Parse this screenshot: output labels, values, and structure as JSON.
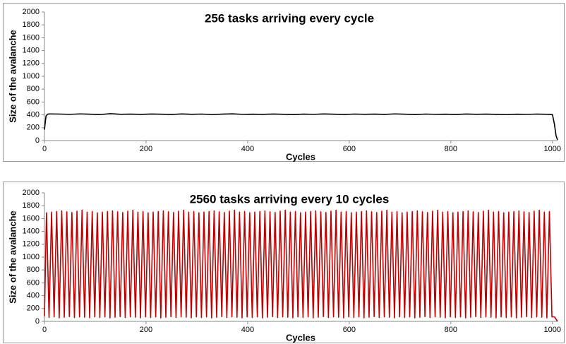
{
  "chart_data": [
    {
      "type": "line",
      "title": "256 tasks arriving every cycle",
      "x_label": "Cycles",
      "y_label": "Size of the avalanche",
      "color": "#000000",
      "xlim": [
        0,
        1010
      ],
      "xticks": [
        0,
        200,
        400,
        600,
        800,
        1000
      ],
      "ylim": [
        0,
        2000
      ],
      "yticks": [
        0,
        200,
        400,
        600,
        800,
        1000,
        1200,
        1400,
        1600,
        1800,
        2000
      ],
      "grid": false,
      "x": [
        0,
        3,
        6,
        10,
        30,
        50,
        70,
        90,
        110,
        130,
        150,
        170,
        190,
        210,
        230,
        250,
        270,
        290,
        310,
        330,
        350,
        370,
        390,
        410,
        430,
        450,
        470,
        490,
        510,
        530,
        550,
        570,
        590,
        610,
        630,
        650,
        670,
        690,
        710,
        730,
        750,
        770,
        790,
        810,
        830,
        850,
        870,
        890,
        910,
        930,
        950,
        970,
        990,
        1000,
        1004,
        1007,
        1010
      ],
      "values": [
        170,
        380,
        410,
        415,
        412,
        408,
        415,
        410,
        405,
        418,
        409,
        411,
        407,
        413,
        410,
        406,
        414,
        409,
        412,
        404,
        411,
        416,
        408,
        410,
        407,
        413,
        409,
        405,
        411,
        408,
        414,
        410,
        406,
        412,
        409,
        411,
        407,
        415,
        410,
        405,
        412,
        408,
        410,
        406,
        413,
        409,
        411,
        407,
        404,
        410,
        408,
        412,
        409,
        405,
        250,
        80,
        10
      ]
    },
    {
      "type": "line",
      "title": "2560 tasks arriving every 10 cycles",
      "x_label": "Cycles",
      "y_label": "Size of the avalanche",
      "color": "#c00000",
      "xlim": [
        0,
        1010
      ],
      "xticks": [
        0,
        200,
        400,
        600,
        800,
        1000
      ],
      "ylim": [
        0,
        2000
      ],
      "yticks": [
        0,
        200,
        400,
        600,
        800,
        1000,
        1200,
        1400,
        1600,
        1800,
        2000
      ],
      "grid": false,
      "x": [
        0,
        4,
        9,
        14,
        19,
        24,
        29,
        34,
        39,
        44,
        49,
        54,
        59,
        64,
        69,
        74,
        79,
        84,
        89,
        94,
        99,
        104,
        109,
        114,
        119,
        124,
        129,
        134,
        139,
        144,
        149,
        154,
        159,
        164,
        169,
        174,
        179,
        184,
        189,
        194,
        199,
        204,
        209,
        214,
        219,
        224,
        229,
        234,
        239,
        244,
        249,
        254,
        259,
        264,
        269,
        274,
        279,
        284,
        289,
        294,
        299,
        304,
        309,
        314,
        319,
        324,
        329,
        334,
        339,
        344,
        349,
        354,
        359,
        364,
        369,
        374,
        379,
        384,
        389,
        394,
        399,
        404,
        409,
        414,
        419,
        424,
        429,
        434,
        439,
        444,
        449,
        454,
        459,
        464,
        469,
        474,
        479,
        484,
        489,
        494,
        499,
        504,
        509,
        514,
        519,
        524,
        529,
        534,
        539,
        544,
        549,
        554,
        559,
        564,
        569,
        574,
        579,
        584,
        589,
        594,
        599,
        604,
        609,
        614,
        619,
        624,
        629,
        634,
        639,
        644,
        649,
        654,
        659,
        664,
        669,
        674,
        679,
        684,
        689,
        694,
        699,
        704,
        709,
        714,
        719,
        724,
        729,
        734,
        739,
        744,
        749,
        754,
        759,
        764,
        769,
        774,
        779,
        784,
        789,
        794,
        799,
        804,
        809,
        814,
        819,
        824,
        829,
        834,
        839,
        844,
        849,
        854,
        859,
        864,
        869,
        874,
        879,
        884,
        889,
        894,
        899,
        904,
        909,
        914,
        919,
        924,
        929,
        934,
        939,
        944,
        949,
        954,
        959,
        964,
        969,
        974,
        979,
        984,
        989,
        994,
        999,
        1004,
        1010
      ],
      "values": [
        80,
        1690,
        60,
        1700,
        70,
        1710,
        55,
        1720,
        65,
        1705,
        75,
        1695,
        60,
        1715,
        70,
        1730,
        65,
        1700,
        55,
        1710,
        70,
        1690,
        60,
        1700,
        70,
        1710,
        55,
        1720,
        65,
        1705,
        75,
        1695,
        60,
        1715,
        70,
        1730,
        65,
        1700,
        55,
        1710,
        70,
        1690,
        60,
        1700,
        70,
        1710,
        55,
        1720,
        65,
        1705,
        75,
        1695,
        60,
        1715,
        70,
        1730,
        65,
        1700,
        55,
        1710,
        70,
        1690,
        60,
        1700,
        70,
        1710,
        55,
        1720,
        65,
        1705,
        75,
        1695,
        60,
        1715,
        70,
        1730,
        65,
        1700,
        55,
        1710,
        70,
        1690,
        60,
        1700,
        70,
        1710,
        55,
        1720,
        65,
        1705,
        75,
        1695,
        60,
        1715,
        70,
        1730,
        65,
        1700,
        55,
        1710,
        70,
        1690,
        60,
        1700,
        70,
        1710,
        55,
        1720,
        65,
        1705,
        75,
        1695,
        60,
        1715,
        70,
        1730,
        65,
        1700,
        55,
        1710,
        70,
        1690,
        60,
        1700,
        70,
        1710,
        55,
        1720,
        65,
        1705,
        75,
        1695,
        60,
        1715,
        70,
        1730,
        65,
        1700,
        55,
        1710,
        70,
        1690,
        60,
        1700,
        70,
        1710,
        55,
        1720,
        65,
        1705,
        75,
        1695,
        60,
        1715,
        70,
        1730,
        65,
        1700,
        55,
        1710,
        70,
        1690,
        60,
        1700,
        70,
        1710,
        55,
        1720,
        65,
        1705,
        75,
        1695,
        60,
        1715,
        70,
        1730,
        65,
        1700,
        55,
        1710,
        70,
        1690,
        60,
        1700,
        70,
        1710,
        55,
        1720,
        65,
        1705,
        75,
        1695,
        60,
        1715,
        70,
        1730,
        65,
        1700,
        55,
        1710,
        70,
        70,
        0
      ]
    }
  ]
}
